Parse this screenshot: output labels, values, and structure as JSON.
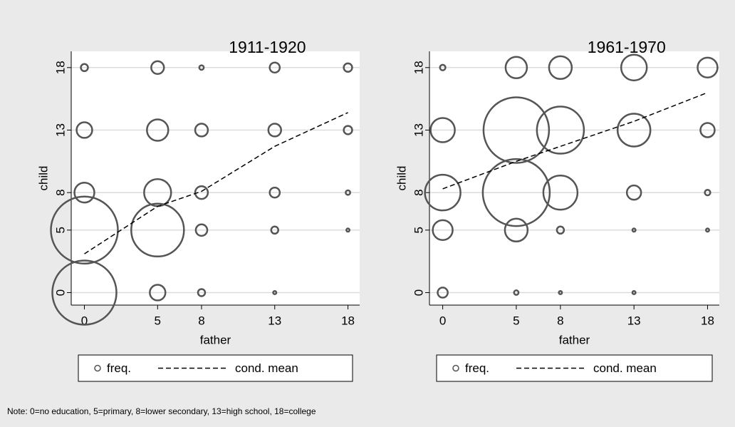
{
  "chart_data": [
    {
      "type": "scatter",
      "title": "1911-1920",
      "x_label": "father",
      "y_label": "child",
      "xlim": [
        -0.9,
        18.8
      ],
      "ylim": [
        -1,
        19.3
      ],
      "xticks": [
        0,
        5,
        8,
        13,
        18
      ],
      "yticks": [
        0,
        5,
        8,
        13,
        18
      ],
      "grid": true,
      "series": [
        {
          "name": "freq.",
          "color": "#555555",
          "x": [
            0,
            5,
            8,
            13,
            18,
            0,
            5,
            8,
            13,
            18,
            0,
            5,
            8,
            13,
            18,
            0,
            5,
            8,
            13,
            18,
            0,
            5,
            8,
            13
          ],
          "y": [
            18,
            18,
            18,
            18,
            18,
            13,
            13,
            13,
            13,
            13,
            8,
            8,
            8,
            8,
            8,
            5,
            5,
            5,
            5,
            5,
            0,
            0,
            0,
            0
          ],
          "size": [
            1,
            3.2,
            0.4,
            2,
            1.4,
            4.8,
            9,
            3.2,
            3.2,
            1.4,
            7.8,
            14.4,
            3.2,
            2,
            0.4,
            88.4,
            54.8,
            2.6,
            1,
            0.2,
            81,
            4.8,
            1,
            0.2
          ]
        },
        {
          "name": "cond. mean",
          "color": "#000000",
          "x": [
            0,
            5,
            8,
            13,
            18
          ],
          "y": [
            3.1,
            6.9,
            8.1,
            11.7,
            14.4
          ]
        }
      ]
    },
    {
      "type": "scatter",
      "title": "1961-1970",
      "x_label": "father",
      "y_label": "child",
      "xlim": [
        -0.9,
        18.8
      ],
      "ylim": [
        -1,
        19.3
      ],
      "xticks": [
        0,
        5,
        8,
        13,
        18
      ],
      "yticks": [
        0,
        5,
        8,
        13,
        18
      ],
      "grid": true,
      "series": [
        {
          "name": "freq.",
          "color": "#555555",
          "x": [
            0,
            5,
            8,
            13,
            18,
            0,
            5,
            8,
            13,
            18,
            0,
            5,
            8,
            13,
            18,
            0,
            5,
            8,
            13,
            18,
            0,
            5,
            8,
            13
          ],
          "y": [
            18,
            18,
            18,
            18,
            18,
            13,
            13,
            13,
            13,
            13,
            8,
            8,
            8,
            8,
            8,
            5,
            5,
            5,
            5,
            5,
            0,
            0,
            0,
            0
          ],
          "size": [
            0.6,
            9,
            10.2,
            13,
            7.8,
            11.6,
            84.6,
            43.6,
            21.2,
            4,
            25,
            88.4,
            23,
            4,
            0.6,
            7.8,
            10.2,
            1,
            0.2,
            0.2,
            2,
            0.4,
            0.2,
            0.2
          ]
        },
        {
          "name": "cond. mean",
          "color": "#000000",
          "x": [
            0,
            5,
            8,
            13,
            18
          ],
          "y": [
            8.3,
            10.5,
            11.7,
            13.7,
            16.0
          ]
        }
      ]
    }
  ],
  "note": "Note: 0=no education, 5=primary, 8=lower secondary, 13=high school, 18=college"
}
